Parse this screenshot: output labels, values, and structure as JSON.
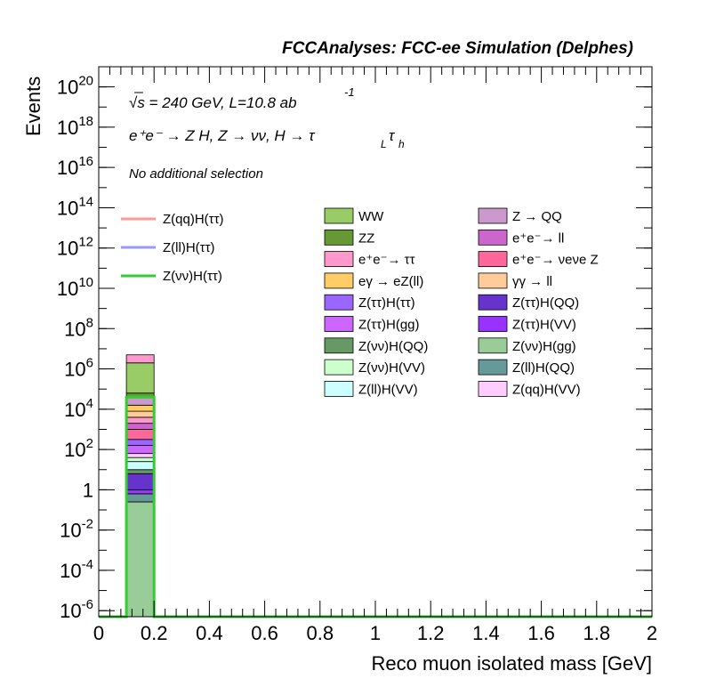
{
  "header": {
    "title": "FCCAnalyses: FCC-ee Simulation (Delphes)",
    "energy_line": "√s = 240 GeV, L=10.8 ab",
    "energy_sup": "-1",
    "process_line": "e⁺e⁻ → Z H, Z → νν, H → τ",
    "process_sub1": "L",
    "process_tau": "τ",
    "process_sub2": "h",
    "selection": "No additional selection"
  },
  "chart_data": {
    "type": "bar",
    "title": "FCCAnalyses: FCC-ee Simulation (Delphes)",
    "xlabel": "Reco muon isolated mass [GeV]",
    "ylabel": "Events",
    "xlim": [
      0,
      2
    ],
    "ylim_log10": [
      -6.3,
      21
    ],
    "yscale": "log",
    "x_ticks": [
      "0",
      "0.2",
      "0.4",
      "0.6",
      "0.8",
      "1",
      "1.2",
      "1.4",
      "1.6",
      "1.8",
      "2"
    ],
    "y_ticks": [
      {
        "base": "10",
        "exp": "-6"
      },
      {
        "base": "10",
        "exp": "-4"
      },
      {
        "base": "10",
        "exp": "-2"
      },
      {
        "base": "1",
        "exp": ""
      },
      {
        "base": "10",
        "exp": "2"
      },
      {
        "base": "10",
        "exp": "4"
      },
      {
        "base": "10",
        "exp": "6"
      },
      {
        "base": "10",
        "exp": "8"
      },
      {
        "base": "10",
        "exp": "10"
      },
      {
        "base": "10",
        "exp": "12"
      },
      {
        "base": "10",
        "exp": "14"
      },
      {
        "base": "10",
        "exp": "16"
      },
      {
        "base": "10",
        "exp": "18"
      },
      {
        "base": "10",
        "exp": "20"
      }
    ],
    "stack_bin": [
      0.1,
      0.2
    ],
    "stack_segments": [
      {
        "label": "Z(νν)H(gg)",
        "log10_low": -6.3,
        "log10_high": -0.6,
        "color": "#99cc99"
      },
      {
        "label": "Z(ll)H(QQ)",
        "log10_low": -0.6,
        "log10_high": -0.2,
        "color": "#669999"
      },
      {
        "label": "Z(ττ)H(VV)",
        "log10_low": -0.2,
        "log10_high": 0.0,
        "color": "#9933ff"
      },
      {
        "label": "Z(ττ)H(QQ)",
        "log10_low": 0.0,
        "log10_high": 0.8,
        "color": "#6633cc"
      },
      {
        "label": "Z(νν)H(QQ)",
        "log10_low": 0.8,
        "log10_high": 1.0,
        "color": "#669966"
      },
      {
        "label": "Z(ll)H(VV)",
        "log10_low": 1.0,
        "log10_high": 1.4,
        "color": "#ccffff"
      },
      {
        "label": "Z(νν)H(VV)",
        "log10_low": 1.4,
        "log10_high": 1.6,
        "color": "#ccffcc"
      },
      {
        "label": "Z(qq)H(VV)",
        "log10_low": 1.6,
        "log10_high": 1.8,
        "color": "#ffccff"
      },
      {
        "label": "Z(ττ)H(gg)",
        "log10_low": 1.8,
        "log10_high": 2.2,
        "color": "#cc66ff"
      },
      {
        "label": "Z(ττ)H(ττ)",
        "log10_low": 2.2,
        "log10_high": 2.5,
        "color": "#9966ff"
      },
      {
        "label": "e⁺e⁻→ ν_e ν_e Z",
        "log10_low": 2.5,
        "log10_high": 3.0,
        "color": "#ff6699"
      },
      {
        "label": "e⁺e⁻→ ll",
        "log10_low": 3.0,
        "log10_high": 3.3,
        "color": "#cc66cc"
      },
      {
        "label": "e⁺e⁻→ ττ",
        "log10_low": 3.3,
        "log10_high": 3.6,
        "color": "#ff99cc"
      },
      {
        "label": "γγ → ll",
        "log10_low": 3.6,
        "log10_high": 3.9,
        "color": "#ffcc99"
      },
      {
        "label": "eγ → eZ(ll)",
        "log10_low": 3.9,
        "log10_high": 4.2,
        "color": "#ffcc66"
      },
      {
        "label": "Z → QQ",
        "log10_low": 4.2,
        "log10_high": 4.6,
        "color": "#cc99cc"
      },
      {
        "label": "ZZ",
        "log10_low": 4.6,
        "log10_high": 4.8,
        "color": "#669933"
      },
      {
        "label": "WW",
        "log10_low": 4.8,
        "log10_high": 6.3,
        "color": "#99cc66"
      },
      {
        "label": "Z(qq)H(ττ)",
        "log10_low": 6.3,
        "log10_high": 6.7,
        "color": "#ff99cc"
      }
    ],
    "signal_lines": [
      {
        "label": "Z(qq)H(ττ)",
        "color": "#ff9999",
        "bin": [
          0.1,
          0.2
        ],
        "log10_value": null
      },
      {
        "label": "Z(ll)H(ττ)",
        "color": "#9999ff",
        "bin": [
          0.1,
          0.2
        ],
        "log10_value": null
      },
      {
        "label": "Z(νν)H(ττ)",
        "color": "#33cc33",
        "bin": [
          0.1,
          0.2
        ],
        "log10_value": 4.6
      }
    ],
    "legend_lines": [
      {
        "label": "Z(qq)H(ττ)",
        "color": "#ff9999"
      },
      {
        "label": "Z(ll)H(ττ)",
        "color": "#9999ff"
      },
      {
        "label": "Z(νν)H(ττ)",
        "color": "#33cc33"
      }
    ],
    "legend_boxes": [
      {
        "label": "WW",
        "color": "#99cc66"
      },
      {
        "label": "Z → QQ",
        "color": "#cc99cc"
      },
      {
        "label": "ZZ",
        "color": "#669933"
      },
      {
        "label": "e⁺e⁻→ ll",
        "color": "#cc66cc"
      },
      {
        "label": "e⁺e⁻→ ττ",
        "color": "#ff99cc"
      },
      {
        "label": "e⁺e⁻→ νeνe Z",
        "color": "#ff6699"
      },
      {
        "label": "eγ → eZ(ll)",
        "color": "#ffcc66"
      },
      {
        "label": "γγ → ll",
        "color": "#ffcc99"
      },
      {
        "label": "Z(ττ)H(ττ)",
        "color": "#9966ff"
      },
      {
        "label": "Z(ττ)H(QQ)",
        "color": "#6633cc"
      },
      {
        "label": "Z(ττ)H(gg)",
        "color": "#cc66ff"
      },
      {
        "label": "Z(ττ)H(VV)",
        "color": "#9933ff"
      },
      {
        "label": "Z(νν)H(QQ)",
        "color": "#669966"
      },
      {
        "label": "Z(νν)H(gg)",
        "color": "#99cc99"
      },
      {
        "label": "Z(νν)H(VV)",
        "color": "#ccffcc"
      },
      {
        "label": "Z(ll)H(QQ)",
        "color": "#669999"
      },
      {
        "label": "Z(ll)H(VV)",
        "color": "#ccffff"
      },
      {
        "label": "Z(qq)H(VV)",
        "color": "#ffccff"
      }
    ],
    "grid": false,
    "legend_position": "top-right"
  }
}
